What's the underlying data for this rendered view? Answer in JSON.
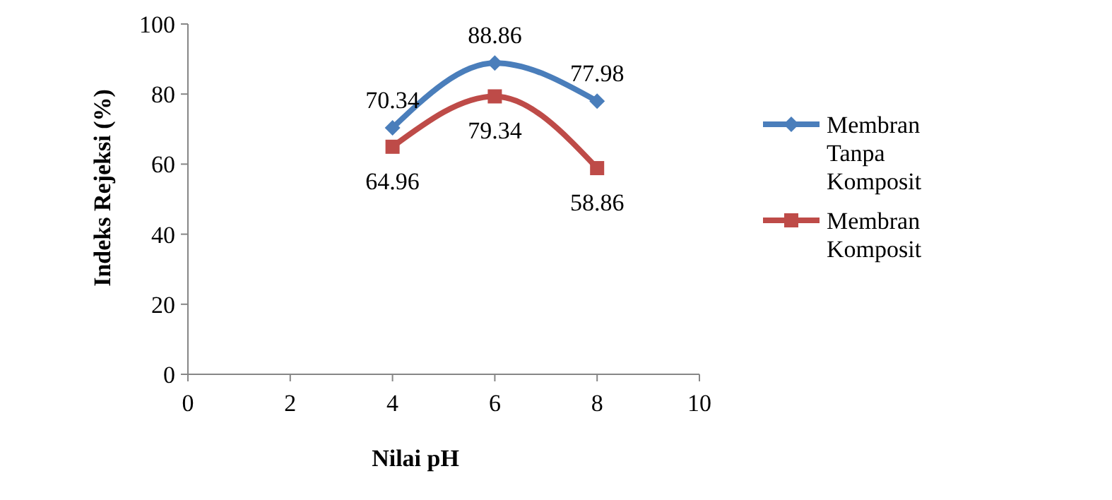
{
  "chart_data": {
    "type": "line",
    "xlabel": "Nilai pH",
    "ylabel": "Indeks Rejeksi (%)",
    "x": [
      4,
      6,
      8
    ],
    "series": [
      {
        "name": "Membran Tanpa Komposit",
        "color": "#4a7ebb",
        "marker": "diamond",
        "values": [
          70.34,
          88.86,
          77.98
        ]
      },
      {
        "name": "Membran Komposit",
        "color": "#be4b48",
        "marker": "square",
        "values": [
          64.96,
          79.34,
          58.86
        ]
      }
    ],
    "xlim": [
      0,
      10
    ],
    "xticks": [
      0,
      2,
      4,
      6,
      8,
      10
    ],
    "ylim": [
      0,
      100
    ],
    "yticks": [
      0,
      20,
      40,
      60,
      80,
      100
    ],
    "data_labels": true,
    "legend": "right",
    "grid": false,
    "line_style": "solid"
  }
}
